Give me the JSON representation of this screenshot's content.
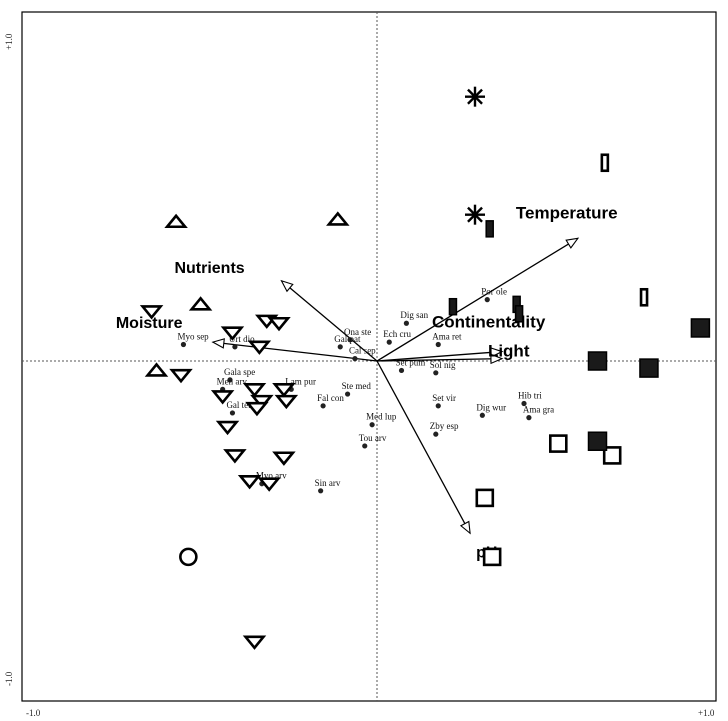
{
  "chart_data": {
    "type": "scatter",
    "xlim": [
      -1.0,
      1.0
    ],
    "ylim": [
      -1.0,
      1.0
    ],
    "tick_labels": {
      "x_min": "-1.0",
      "x_max": "+1.0",
      "y_min": "-1.0",
      "y_max": "+1.0"
    },
    "environmental_vectors": [
      {
        "name": "Temperature",
        "x": 0.82,
        "y": 0.52
      },
      {
        "name": "Nutrients",
        "x": -0.39,
        "y": 0.34
      },
      {
        "name": "Moisture",
        "x": -0.67,
        "y": 0.08
      },
      {
        "name": "Continentality",
        "x": 0.51,
        "y": 0.04
      },
      {
        "name": "Light",
        "x": 0.51,
        "y": 0.01
      },
      {
        "name": "pH",
        "x": 0.38,
        "y": -0.73
      }
    ],
    "species": [
      {
        "label": "Ona ste",
        "x": -0.11,
        "y": 0.09
      },
      {
        "label": "Gal pat",
        "x": -0.15,
        "y": 0.06
      },
      {
        "label": "Myo sep",
        "x": -0.79,
        "y": 0.07
      },
      {
        "label": "Urt dio",
        "x": -0.58,
        "y": 0.06
      },
      {
        "label": "Ech cru",
        "x": 0.05,
        "y": 0.08
      },
      {
        "label": "Dig san",
        "x": 0.12,
        "y": 0.16
      },
      {
        "label": "Ama ret",
        "x": 0.25,
        "y": 0.07
      },
      {
        "label": "Por ole",
        "x": 0.45,
        "y": 0.26
      },
      {
        "label": "Set pum",
        "x": 0.1,
        "y": -0.04
      },
      {
        "label": "Sol nig",
        "x": 0.24,
        "y": -0.05
      },
      {
        "label": "Cal sep",
        "x": -0.09,
        "y": 0.01
      },
      {
        "label": "Gala spe",
        "x": -0.6,
        "y": -0.08
      },
      {
        "label": "Men arv",
        "x": -0.63,
        "y": -0.12
      },
      {
        "label": "Lam pur",
        "x": -0.35,
        "y": -0.12
      },
      {
        "label": "Ste med",
        "x": -0.12,
        "y": -0.14
      },
      {
        "label": "Gal tet",
        "x": -0.59,
        "y": -0.22
      },
      {
        "label": "Fal con",
        "x": -0.22,
        "y": -0.19
      },
      {
        "label": "Set vir",
        "x": 0.25,
        "y": -0.19
      },
      {
        "label": "Dig wur",
        "x": 0.43,
        "y": -0.23
      },
      {
        "label": "Hib tri",
        "x": 0.6,
        "y": -0.18
      },
      {
        "label": "Ama gra",
        "x": 0.62,
        "y": -0.24
      },
      {
        "label": "Med lup",
        "x": -0.02,
        "y": -0.27
      },
      {
        "label": "Zby esp",
        "x": 0.24,
        "y": -0.31
      },
      {
        "label": "Tou arv",
        "x": -0.05,
        "y": -0.36
      },
      {
        "label": "Myo arv",
        "x": -0.47,
        "y": -0.52
      },
      {
        "label": "Sin arv",
        "x": -0.23,
        "y": -0.55
      }
    ],
    "sites": [
      {
        "symbol": "triangle-up",
        "x": -0.82,
        "y": 0.59
      },
      {
        "symbol": "triangle-up",
        "x": -0.16,
        "y": 0.6
      },
      {
        "symbol": "triangle-up",
        "x": -0.72,
        "y": 0.24
      },
      {
        "symbol": "triangle-up",
        "x": -0.9,
        "y": -0.04
      },
      {
        "symbol": "triangle-down",
        "x": -0.92,
        "y": 0.21
      },
      {
        "symbol": "triangle-down",
        "x": -0.45,
        "y": 0.17
      },
      {
        "symbol": "triangle-down",
        "x": -0.4,
        "y": 0.16
      },
      {
        "symbol": "triangle-down",
        "x": -0.48,
        "y": 0.06
      },
      {
        "symbol": "triangle-down",
        "x": -0.8,
        "y": -0.06
      },
      {
        "symbol": "triangle-down",
        "x": -0.47,
        "y": -0.17
      },
      {
        "symbol": "triangle-down",
        "x": -0.37,
        "y": -0.17
      },
      {
        "symbol": "triangle-down",
        "x": -0.61,
        "y": -0.28
      },
      {
        "symbol": "triangle-down",
        "x": -0.63,
        "y": -0.15
      },
      {
        "symbol": "triangle-down",
        "x": -0.58,
        "y": -0.4
      },
      {
        "symbol": "triangle-down",
        "x": -0.5,
        "y": -0.12
      },
      {
        "symbol": "triangle-down",
        "x": -0.38,
        "y": -0.12
      },
      {
        "symbol": "triangle-down",
        "x": -0.49,
        "y": -0.2
      },
      {
        "symbol": "triangle-down",
        "x": -0.38,
        "y": -0.41
      },
      {
        "symbol": "triangle-down",
        "x": -0.52,
        "y": -0.51
      },
      {
        "symbol": "triangle-down",
        "x": -0.44,
        "y": -0.52
      },
      {
        "symbol": "triangle-down",
        "x": -0.5,
        "y": -1.19
      },
      {
        "symbol": "triangle-down",
        "x": -0.59,
        "y": 0.12
      },
      {
        "symbol": "circle",
        "x": -0.77,
        "y": -0.83
      },
      {
        "symbol": "asterisk",
        "x": 0.4,
        "y": 1.12
      },
      {
        "symbol": "asterisk",
        "x": 0.4,
        "y": 0.62
      },
      {
        "symbol": "narrow-rect",
        "x": 0.93,
        "y": 0.84
      },
      {
        "symbol": "narrow-rect",
        "x": 1.09,
        "y": 0.27
      },
      {
        "symbol": "narrow-rect-filled",
        "x": 0.46,
        "y": 0.56
      },
      {
        "symbol": "narrow-rect-filled",
        "x": 0.31,
        "y": 0.23
      },
      {
        "symbol": "narrow-rect-filled",
        "x": 0.57,
        "y": 0.24
      },
      {
        "symbol": "narrow-rect-filled",
        "x": 0.58,
        "y": 0.2
      },
      {
        "symbol": "square-open",
        "x": 0.74,
        "y": -0.35
      },
      {
        "symbol": "square-open",
        "x": 0.96,
        "y": -0.4
      },
      {
        "symbol": "square-open",
        "x": 0.44,
        "y": -0.58
      },
      {
        "symbol": "square-open",
        "x": 0.47,
        "y": -0.83
      },
      {
        "symbol": "square-filled",
        "x": 0.9,
        "y": 0.0
      },
      {
        "symbol": "square-filled",
        "x": 1.11,
        "y": -0.03
      },
      {
        "symbol": "square-filled",
        "x": 1.32,
        "y": 0.14
      },
      {
        "symbol": "square-filled",
        "x": 0.9,
        "y": -0.34
      }
    ]
  }
}
